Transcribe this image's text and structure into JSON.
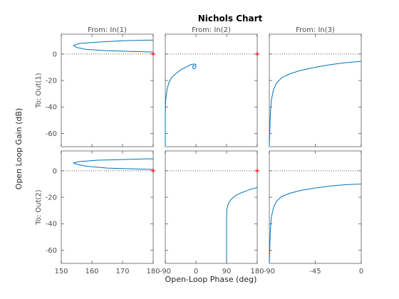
{
  "chart_data": {
    "type": "line",
    "title": "Nichols Chart",
    "xlabel": "Open-Loop Phase (deg)",
    "ylabel": "Open Loop Gain (dB)",
    "inputs": [
      "From: In(1)",
      "From: In(2)",
      "From: In(3)"
    ],
    "outputs": [
      "To: Out(1)",
      "To: Out(2)"
    ],
    "ylim": [
      -70,
      15
    ],
    "columns": [
      {
        "xlim": [
          150,
          180
        ],
        "ticks": [
          150,
          160,
          170,
          180
        ]
      },
      {
        "xlim": [
          -90,
          180
        ],
        "ticks": [
          -90,
          0,
          90,
          180
        ]
      },
      {
        "xlim": [
          -90,
          0
        ],
        "ticks": [
          -90,
          -45,
          0
        ]
      }
    ],
    "row_ticks": [
      {
        "ticks": [
          0,
          -20,
          -40,
          -60
        ]
      },
      {
        "ticks": [
          0,
          -20,
          -40,
          -60
        ]
      }
    ],
    "critical_point": {
      "phase": 180,
      "gain": 0
    },
    "zero_gain_line": 0,
    "line_color": "#0072bd",
    "critical_color": "#ff0000",
    "series": [
      {
        "row": 0,
        "col": 0,
        "x": [
          180,
          165,
          158,
          155,
          154,
          156,
          162,
          170,
          178,
          180
        ],
        "y": [
          1.5,
          2.5,
          3.5,
          5,
          6.5,
          8,
          9,
          10,
          10.5,
          10.5
        ]
      },
      {
        "row": 0,
        "col": 1,
        "x": [
          -90,
          -90,
          -89,
          -85,
          -80,
          -72,
          -60,
          -45,
          -30,
          -15,
          -5,
          0,
          0,
          -3,
          -8,
          -10,
          -7,
          -3
        ],
        "y": [
          -70,
          -45,
          -35,
          -27,
          -22,
          -18,
          -15,
          -12,
          -10,
          -8,
          -7.5,
          -8,
          -9.5,
          -11,
          -11,
          -9.5,
          -8.5,
          -9
        ]
      },
      {
        "row": 0,
        "col": 2,
        "x": [
          -90,
          -89,
          -88,
          -86,
          -83,
          -78,
          -70,
          -60,
          -45,
          -30,
          -15,
          0
        ],
        "y": [
          -70,
          -45,
          -35,
          -27,
          -22,
          -18,
          -15,
          -12.5,
          -10,
          -8,
          -6.5,
          -5.5
        ]
      },
      {
        "row": 1,
        "col": 0,
        "x": [
          180,
          165,
          158,
          155,
          154,
          156,
          162,
          170,
          178,
          180
        ],
        "y": [
          1,
          2,
          3.5,
          5,
          6,
          7,
          8,
          8.5,
          9,
          9
        ]
      },
      {
        "row": 1,
        "col": 1,
        "x": [
          90,
          90,
          91,
          95,
          102,
          115,
          130,
          145,
          160,
          175,
          180
        ],
        "y": [
          -70,
          -35,
          -29,
          -25,
          -22,
          -19,
          -17,
          -15.5,
          -14,
          -13,
          -12.5
        ]
      },
      {
        "row": 1,
        "col": 2,
        "x": [
          -90,
          -89,
          -88,
          -86,
          -83,
          -78,
          -70,
          -60,
          -45,
          -30,
          -15,
          0
        ],
        "y": [
          -70,
          -45,
          -35,
          -28,
          -23,
          -19.5,
          -17,
          -15,
          -13,
          -11.5,
          -10.5,
          -10
        ]
      }
    ]
  }
}
